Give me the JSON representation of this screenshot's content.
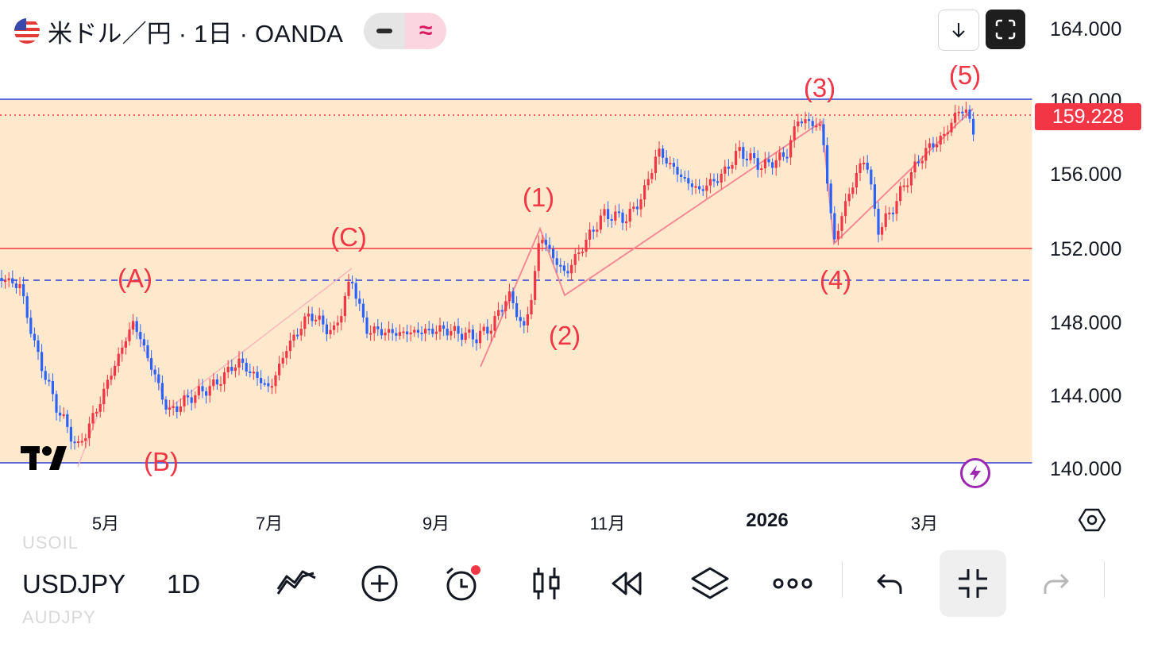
{
  "header": {
    "title": "米ドル／円 · 1日 · OANDA",
    "approx_symbol": "≈"
  },
  "price_axis": {
    "labels": [
      "164.000",
      "160.000",
      "156.000",
      "152.000",
      "148.000",
      "144.000",
      "140.000"
    ],
    "current_price": "159.228"
  },
  "time_axis": {
    "labels": [
      "5月",
      "7月",
      "9月",
      "11月",
      "2026",
      "3月"
    ]
  },
  "wave_labels": [
    "(A)",
    "(B)",
    "(C)",
    "(1)",
    "(2)",
    "(3)",
    "(4)",
    "(5)"
  ],
  "colors": {
    "up": "#f23645",
    "down": "#2962ff",
    "zone": "#ffe9cc",
    "wave_line": "#f7a0a8",
    "level_line": "#2b3fd8",
    "support_line": "#f23645"
  },
  "toolbar": {
    "ghost_top": "USOIL",
    "symbol": "USDJPY",
    "interval": "1D",
    "ghost_bottom": "AUDJPY"
  },
  "icons": [
    "drawing-tools-icon",
    "add-icon",
    "alert-clock-icon",
    "candles-icon",
    "replay-icon",
    "layers-icon",
    "more-icon",
    "undo-icon",
    "collapse-icon",
    "redo-icon"
  ]
}
